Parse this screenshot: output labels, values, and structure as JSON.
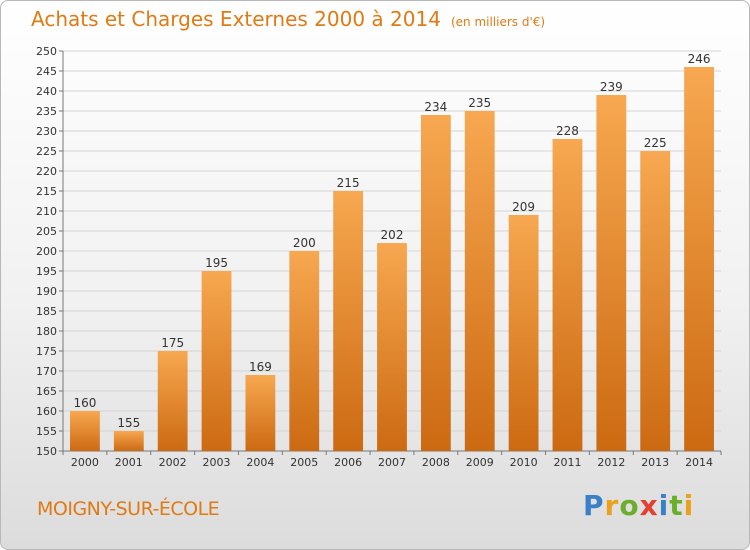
{
  "title": "Achats et Charges Externes 2000 à 2014",
  "subtitle": "(en milliers d'€)",
  "town": "MOIGNY-SUR-ÉCOLE",
  "logo": {
    "letters": [
      "P",
      "r",
      "o",
      "x",
      "i",
      "t",
      "i"
    ],
    "colors": [
      "#3b7fc6",
      "#e9a21a",
      "#6cae2c",
      "#e43f2f",
      "#3b7fc6",
      "#6cae2c",
      "#e9a21a"
    ]
  },
  "colors": {
    "accent": "#e07a14",
    "bar_top": "#f7a850",
    "bar_bottom": "#cc6a12",
    "grid": "#d4d4d4"
  },
  "chart_data": {
    "type": "bar",
    "title": "Achats et Charges Externes 2000 à 2014",
    "subtitle": "(en milliers d'€)",
    "categories": [
      "2000",
      "2001",
      "2002",
      "2003",
      "2004",
      "2005",
      "2006",
      "2007",
      "2008",
      "2009",
      "2010",
      "2011",
      "2012",
      "2013",
      "2014"
    ],
    "values": [
      160,
      155,
      175,
      195,
      169,
      200,
      215,
      202,
      234,
      235,
      209,
      228,
      239,
      225,
      246
    ],
    "ylim": [
      150,
      250
    ],
    "yticks": [
      150,
      155,
      160,
      165,
      170,
      175,
      180,
      185,
      190,
      195,
      200,
      205,
      210,
      215,
      220,
      225,
      230,
      235,
      240,
      245,
      250
    ],
    "grid": true,
    "xlabel": "",
    "ylabel": ""
  }
}
